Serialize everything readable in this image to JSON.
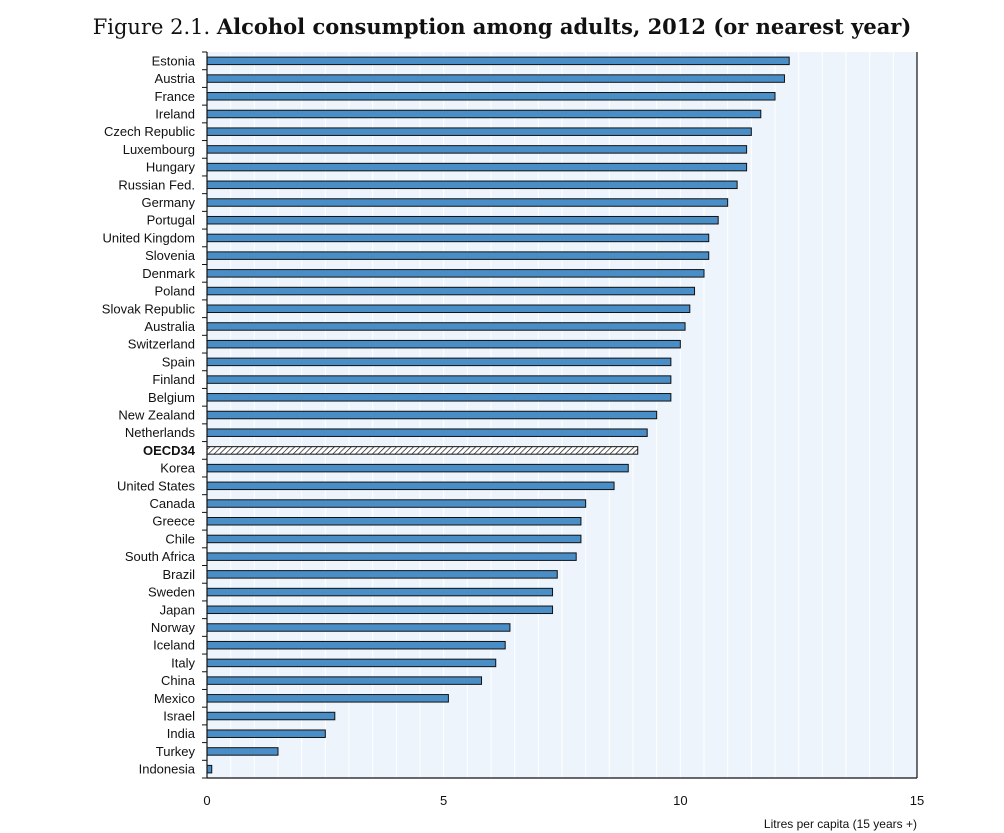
{
  "figure": {
    "prefix": "Figure 2.1.",
    "title": "Alcohol consumption among adults, 2012 (or nearest year)"
  },
  "chart_data": {
    "type": "bar",
    "orientation": "horizontal",
    "categories": [
      "Estonia",
      "Austria",
      "France",
      "Ireland",
      "Czech Republic",
      "Luxembourg",
      "Hungary",
      "Russian Fed.",
      "Germany",
      "Portugal",
      "United Kingdom",
      "Slovenia",
      "Denmark",
      "Poland",
      "Slovak Republic",
      "Australia",
      "Switzerland",
      "Spain",
      "Finland",
      "Belgium",
      "New Zealand",
      "Netherlands",
      "OECD34",
      "Korea",
      "United States",
      "Canada",
      "Greece",
      "Chile",
      "South Africa",
      "Brazil",
      "Sweden",
      "Japan",
      "Norway",
      "Iceland",
      "Italy",
      "China",
      "Mexico",
      "Israel",
      "India",
      "Turkey",
      "Indonesia"
    ],
    "values": [
      12.3,
      12.2,
      12.0,
      11.7,
      11.5,
      11.4,
      11.4,
      11.2,
      11.0,
      10.8,
      10.6,
      10.6,
      10.5,
      10.3,
      10.2,
      10.1,
      10.0,
      9.8,
      9.8,
      9.8,
      9.5,
      9.3,
      9.1,
      8.9,
      8.6,
      8.0,
      7.9,
      7.9,
      7.8,
      7.4,
      7.3,
      7.3,
      6.4,
      6.3,
      6.1,
      5.8,
      5.1,
      2.7,
      2.5,
      1.5,
      0.1
    ],
    "highlight": "OECD34",
    "xlabel": "Litres per capita (15 years +)",
    "xlim": [
      0,
      15
    ],
    "xticks": [
      0,
      5,
      10,
      15
    ],
    "grid": true,
    "colors": {
      "bar": "#4a8ec8",
      "edge": "#111111",
      "plot_bg": "#edf4fb",
      "grid": "#ffffff"
    }
  }
}
